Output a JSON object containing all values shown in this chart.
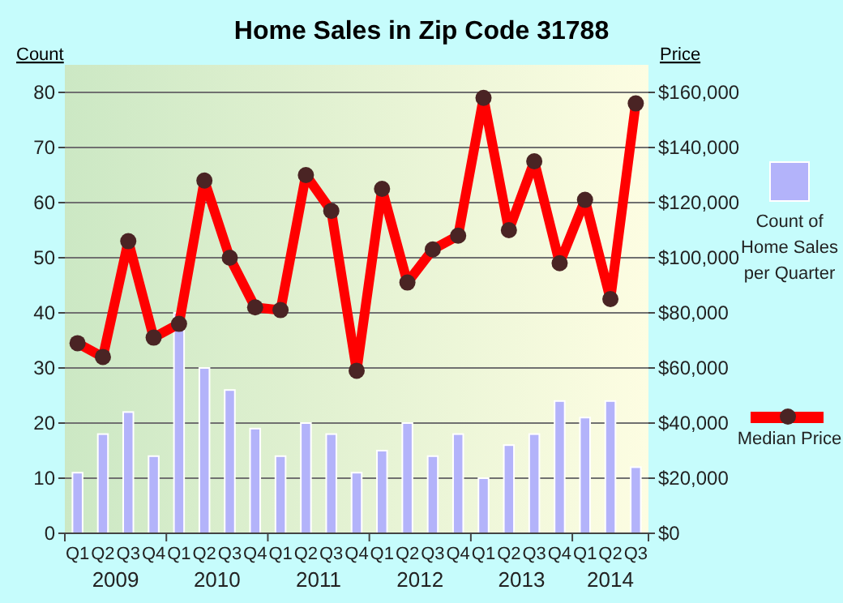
{
  "chart_data": {
    "type": "bar",
    "title": "Home Sales in Zip Code 31788",
    "ylabel": "Count",
    "y2label": "Price",
    "categories": [
      "Q1",
      "Q2",
      "Q3",
      "Q4",
      "Q1",
      "Q2",
      "Q3",
      "Q4",
      "Q1",
      "Q2",
      "Q3",
      "Q4",
      "Q1",
      "Q2",
      "Q3",
      "Q4",
      "Q1",
      "Q2",
      "Q3",
      "Q4",
      "Q1",
      "Q2",
      "Q3"
    ],
    "annotations": [
      "2009",
      "2010",
      "2011",
      "2012",
      "2013",
      "2014"
    ],
    "series": [
      {
        "name": "Count of Home Sales per Quarter",
        "color": "#b3b3fa",
        "values": [
          11,
          18,
          22,
          14,
          40,
          30,
          26,
          19,
          14,
          20,
          18,
          11,
          15,
          20,
          14,
          18,
          10,
          16,
          18,
          24,
          21,
          24,
          12
        ]
      },
      {
        "name": "Median Price",
        "type": "line",
        "axis": "y2",
        "color": "#ff0000",
        "marker": "circle",
        "values": [
          69000,
          64000,
          106000,
          71000,
          76000,
          128000,
          100000,
          82000,
          81000,
          130000,
          117000,
          59000,
          125000,
          91000,
          103000,
          108000,
          158000,
          110000,
          135000,
          98000,
          121000,
          85000,
          156000
        ]
      }
    ],
    "ylim": [
      0,
      85
    ],
    "yticks": [
      0,
      10,
      20,
      30,
      40,
      50,
      60,
      70,
      80
    ],
    "y2lim": [
      0,
      170000
    ],
    "y2ticks": [
      {
        "value": 0,
        "label": "$0"
      },
      {
        "value": 20000,
        "label": "$20,000"
      },
      {
        "value": 40000,
        "label": "$40,000"
      },
      {
        "value": 60000,
        "label": "$60,000"
      },
      {
        "value": 80000,
        "label": "$80,000"
      },
      {
        "value": 100000,
        "label": "$100,000"
      },
      {
        "value": 120000,
        "label": "$120,000"
      },
      {
        "value": 140000,
        "label": "$140,000"
      },
      {
        "value": 160000,
        "label": "$160,000"
      }
    ],
    "grid": "y",
    "legend": "right"
  }
}
